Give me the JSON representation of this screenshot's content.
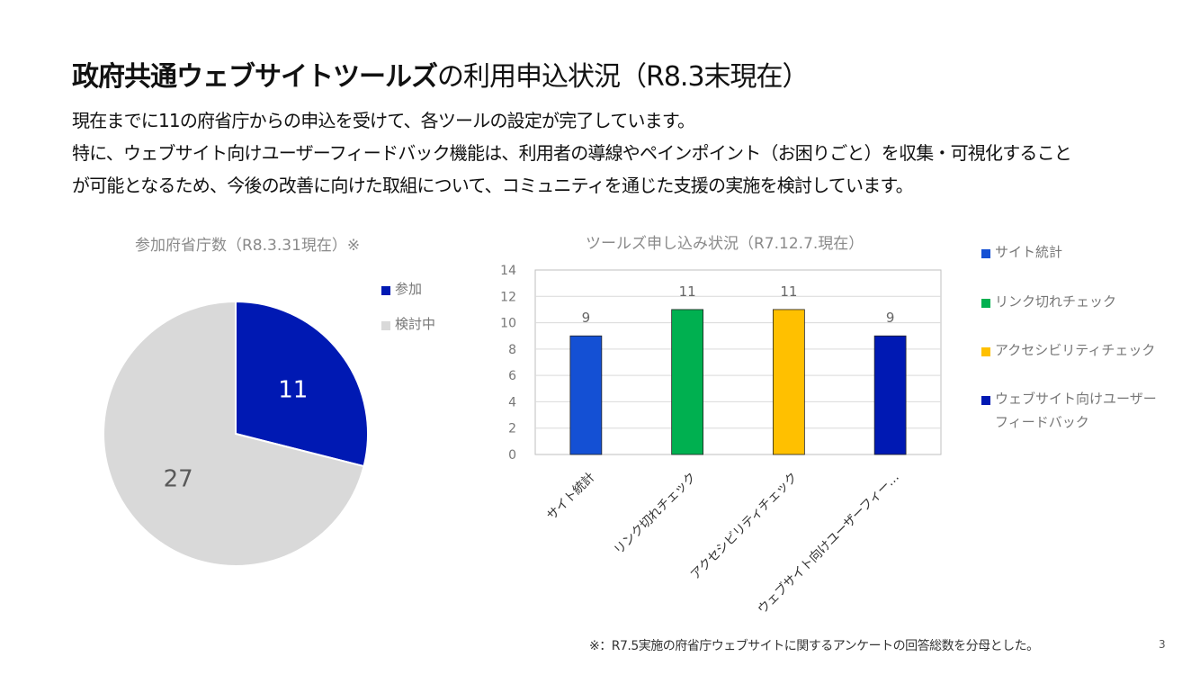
{
  "slide": {
    "title_bold": "政府共通ウェブサイトツールズ",
    "title_rest": "の利用申込状況（R8.3末現在）",
    "body_lines": [
      "現在までに11の府省庁からの申込を受けて、各ツールの設定が完了しています。",
      "特に、ウェブサイト向けユーザーフィードバック機能は、利用者の導線やペインポイント（お困りごと）を収集・可視化すること",
      "が可能となるため、今後の改善に向けた取組について、コミュニティを通じた支援の実施を検討しています。"
    ],
    "footnote": "※：R7.5実施の府省庁ウェブサイトに関するアンケートの回答総数を分母とした。",
    "page_number": "3"
  },
  "chart_data": [
    {
      "type": "pie",
      "title": "参加府省庁数（R8.3.31現在）※",
      "categories": [
        "参加",
        "検討中"
      ],
      "values": [
        11,
        27
      ],
      "colors": [
        "#0019b3",
        "#d9d9d9"
      ],
      "legend": "right"
    },
    {
      "type": "bar",
      "title": "ツールズ申し込み状況（R7.12.7.現在）",
      "categories": [
        "サイト統計",
        "リンク切れチェック",
        "アクセシビリティチェック",
        "ウェブサイト向けユーザーフィードバック"
      ],
      "category_tick_labels": [
        "サイト統計",
        "リンク切れチェック",
        "アクセシビリティチェック",
        "ウェブサイト向けユーザーフィー…"
      ],
      "values": [
        9,
        11,
        11,
        9
      ],
      "colors": [
        "#1450d4",
        "#00b050",
        "#ffc000",
        "#0019b3"
      ],
      "ylim": [
        0,
        14
      ],
      "yticks": [
        "0",
        "2",
        "4",
        "6",
        "8",
        "10",
        "12",
        "14"
      ],
      "grid": true,
      "legend": "right",
      "legend_entries": [
        "サイト統計",
        "リンク切れチェック",
        "アクセシビリティチェック",
        "ウェブサイト向けユーザー",
        "フィードバック"
      ]
    }
  ]
}
